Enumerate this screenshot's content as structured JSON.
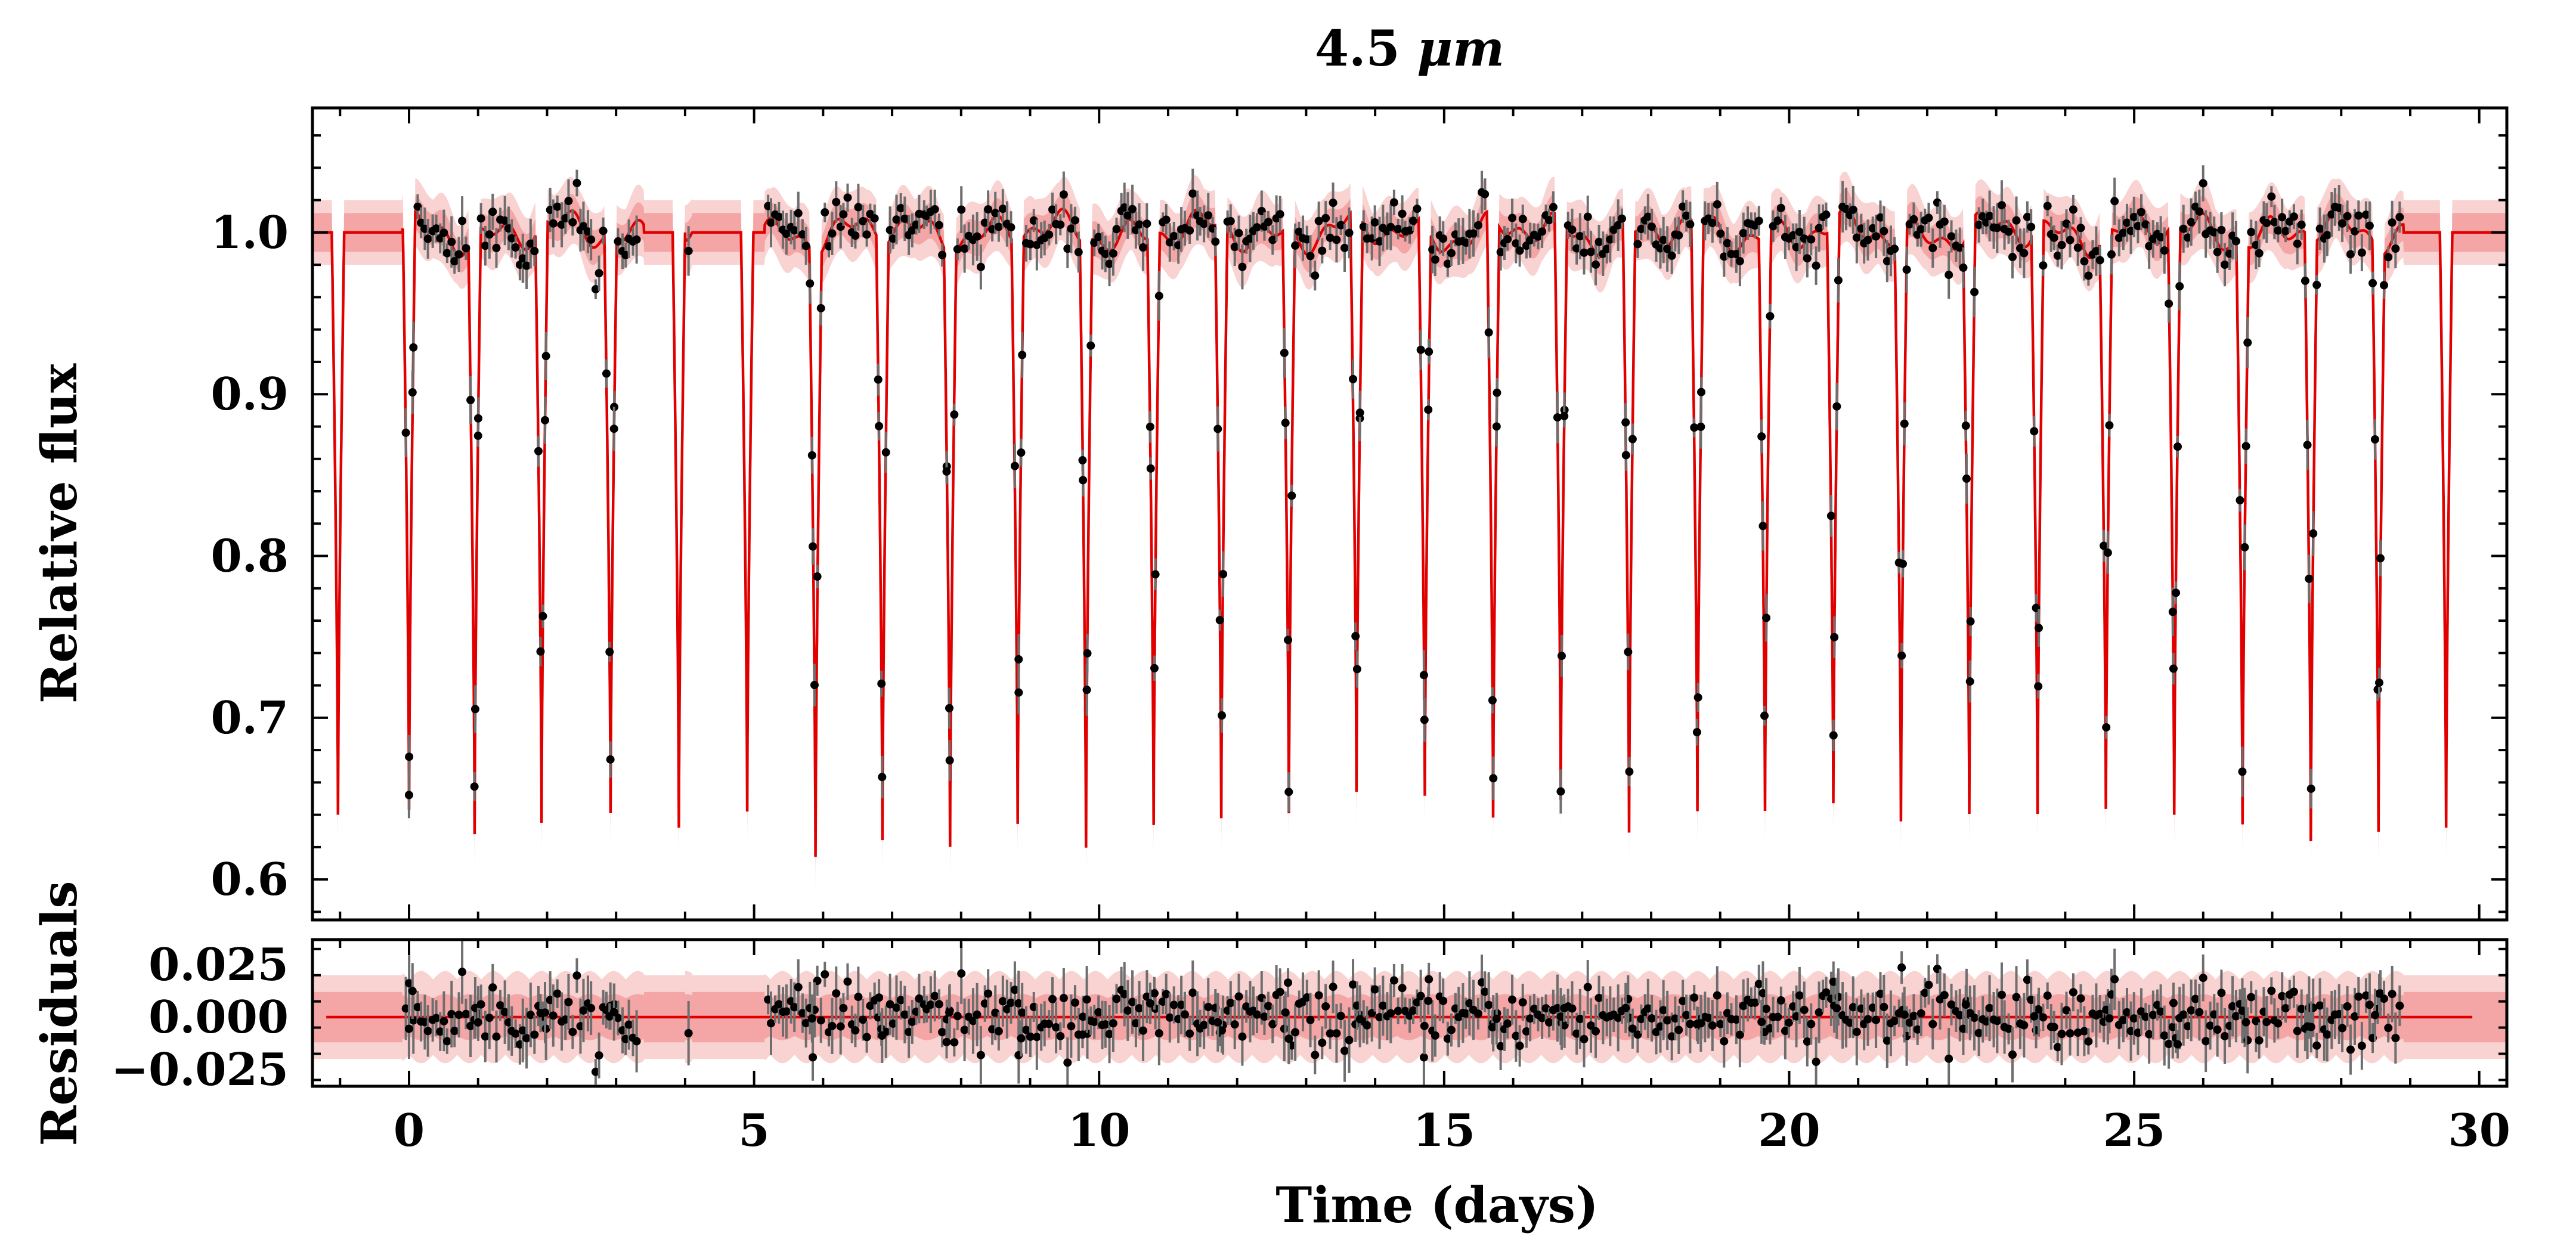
{
  "chart_data": [
    {
      "type": "scatter",
      "panel": "flux",
      "title": "4.5 μm",
      "title_text": "4.5 ",
      "title_unit": "μm",
      "xlabel": "",
      "ylabel": "Relative flux",
      "xlim": [
        -1.4,
        30.4
      ],
      "ylim": [
        0.575,
        1.077
      ],
      "x_ticks": [
        0,
        5,
        10,
        15,
        20,
        25,
        30
      ],
      "y_ticks": [
        0.6,
        0.7,
        0.8,
        0.9,
        1.0
      ],
      "y_tick_labels": [
        "0.6",
        "0.7",
        "0.8",
        "0.9",
        "1.0"
      ],
      "transit_times": [
        -1.03,
        0.0,
        0.95,
        1.92,
        2.92,
        3.91,
        4.9,
        5.89,
        6.86,
        7.84,
        8.82,
        9.81,
        10.79,
        11.77,
        12.75,
        13.73,
        14.72,
        15.71,
        16.69,
        17.68,
        18.67,
        19.65,
        20.64,
        21.62,
        22.61,
        23.6,
        24.59,
        25.58,
        26.57,
        27.56,
        28.54,
        29.52
      ],
      "transit_depth_min": [
        0.64,
        0.632,
        0.628,
        0.63,
        0.643,
        0.632,
        0.642,
        0.628,
        0.632,
        0.635,
        0.641,
        0.626,
        0.636,
        0.632,
        0.638,
        0.641,
        0.645,
        0.628,
        0.642,
        0.627,
        0.637,
        0.646,
        0.643,
        0.638,
        0.638,
        0.637,
        0.644,
        0.636,
        0.641,
        0.627,
        0.641,
        0.632
      ],
      "data_coverage": [
        [
          -0.05,
          3.35
        ],
        [
          4.05,
          4.05
        ],
        [
          5.2,
          28.85
        ]
      ],
      "series": [
        {
          "name": "Observations",
          "color": "#000000",
          "style": "points with error bars"
        },
        {
          "name": "Model median",
          "color": "#e00000",
          "style": "line"
        },
        {
          "name": "Model 68% interval",
          "color": "#f4a6a6",
          "style": "band"
        },
        {
          "name": "Model 95% interval",
          "color": "#f9d2d2",
          "style": "band"
        }
      ],
      "grid": false,
      "legend": "none"
    },
    {
      "type": "scatter",
      "panel": "residuals",
      "xlabel": "Time (days)",
      "ylabel": "Residuals",
      "xlim": [
        -1.4,
        30.4
      ],
      "ylim": [
        -0.033,
        0.037
      ],
      "x_ticks": [
        0,
        5,
        10,
        15,
        20,
        25,
        30
      ],
      "x_tick_labels": [
        "0",
        "5",
        "10",
        "15",
        "20",
        "25",
        "30"
      ],
      "y_ticks": [
        -0.025,
        0.0,
        0.025
      ],
      "y_tick_labels": [
        "−0.025",
        "0.000",
        "0.025"
      ],
      "zero_line": 0.0,
      "series": [
        {
          "name": "Residuals",
          "color": "#000000",
          "style": "points with error bars"
        },
        {
          "name": "Zero line",
          "color": "#e00000",
          "style": "line"
        }
      ],
      "grid": false,
      "legend": "none"
    }
  ]
}
